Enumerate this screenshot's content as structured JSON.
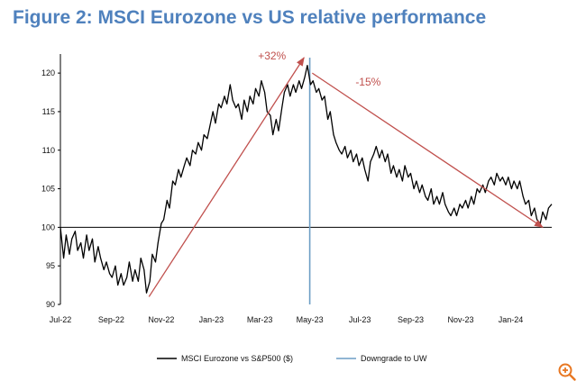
{
  "title": "Figure 2: MSCI Eurozone vs US relative performance",
  "zoom_icon": "zoom-in-icon",
  "chart_data": {
    "type": "line",
    "title": "Figure 2: MSCI Eurozone vs US relative performance",
    "ylim": [
      90,
      122
    ],
    "yticks": [
      90,
      95,
      100,
      105,
      110,
      115,
      120
    ],
    "x_range": [
      "2022-07-01",
      "2024-02-20"
    ],
    "xticks": [
      {
        "label": "Jul-22",
        "date": "2022-07-01"
      },
      {
        "label": "Sep-22",
        "date": "2022-09-01"
      },
      {
        "label": "Nov-22",
        "date": "2022-11-01"
      },
      {
        "label": "Jan-23",
        "date": "2023-01-01"
      },
      {
        "label": "Mar-23",
        "date": "2023-03-01"
      },
      {
        "label": "May-23",
        "date": "2023-05-01"
      },
      {
        "label": "Jul-23",
        "date": "2023-07-01"
      },
      {
        "label": "Sep-23",
        "date": "2023-09-01"
      },
      {
        "label": "Nov-23",
        "date": "2023-11-01"
      },
      {
        "label": "Jan-24",
        "date": "2024-01-01"
      }
    ],
    "grid": false,
    "baseline": 100,
    "legend_position": "bottom",
    "series": [
      {
        "name": "MSCI Eurozone vs S&P500 ($)",
        "color": "#000000",
        "points": [
          [
            "2022-07-01",
            100.0
          ],
          [
            "2022-07-05",
            96.0
          ],
          [
            "2022-07-08",
            99.0
          ],
          [
            "2022-07-12",
            96.5
          ],
          [
            "2022-07-15",
            98.5
          ],
          [
            "2022-07-19",
            99.5
          ],
          [
            "2022-07-22",
            97.0
          ],
          [
            "2022-07-26",
            98.0
          ],
          [
            "2022-07-29",
            96.0
          ],
          [
            "2022-08-02",
            99.0
          ],
          [
            "2022-08-05",
            97.0
          ],
          [
            "2022-08-09",
            98.5
          ],
          [
            "2022-08-12",
            95.5
          ],
          [
            "2022-08-16",
            97.5
          ],
          [
            "2022-08-19",
            96.0
          ],
          [
            "2022-08-23",
            94.5
          ],
          [
            "2022-08-26",
            95.5
          ],
          [
            "2022-08-30",
            94.0
          ],
          [
            "2022-09-02",
            93.5
          ],
          [
            "2022-09-06",
            95.0
          ],
          [
            "2022-09-09",
            92.5
          ],
          [
            "2022-09-13",
            94.0
          ],
          [
            "2022-09-16",
            92.5
          ],
          [
            "2022-09-20",
            93.5
          ],
          [
            "2022-09-23",
            95.5
          ],
          [
            "2022-09-27",
            93.0
          ],
          [
            "2022-09-30",
            94.5
          ],
          [
            "2022-10-04",
            93.0
          ],
          [
            "2022-10-07",
            96.0
          ],
          [
            "2022-10-11",
            94.5
          ],
          [
            "2022-10-14",
            91.5
          ],
          [
            "2022-10-18",
            93.0
          ],
          [
            "2022-10-21",
            96.5
          ],
          [
            "2022-10-25",
            95.5
          ],
          [
            "2022-10-28",
            98.0
          ],
          [
            "2022-11-01",
            100.5
          ],
          [
            "2022-11-04",
            101.0
          ],
          [
            "2022-11-08",
            103.5
          ],
          [
            "2022-11-11",
            102.5
          ],
          [
            "2022-11-15",
            106.0
          ],
          [
            "2022-11-18",
            105.5
          ],
          [
            "2022-11-22",
            107.5
          ],
          [
            "2022-11-25",
            106.5
          ],
          [
            "2022-11-29",
            108.0
          ],
          [
            "2022-12-02",
            109.0
          ],
          [
            "2022-12-06",
            108.0
          ],
          [
            "2022-12-09",
            110.0
          ],
          [
            "2022-12-13",
            109.5
          ],
          [
            "2022-12-16",
            111.0
          ],
          [
            "2022-12-20",
            110.0
          ],
          [
            "2022-12-23",
            112.0
          ],
          [
            "2022-12-27",
            111.5
          ],
          [
            "2022-12-30",
            113.0
          ],
          [
            "2023-01-03",
            115.0
          ],
          [
            "2023-01-06",
            113.5
          ],
          [
            "2023-01-10",
            116.0
          ],
          [
            "2023-01-13",
            115.5
          ],
          [
            "2023-01-17",
            117.0
          ],
          [
            "2023-01-20",
            116.0
          ],
          [
            "2023-01-24",
            118.5
          ],
          [
            "2023-01-27",
            116.5
          ],
          [
            "2023-01-31",
            115.5
          ],
          [
            "2023-02-03",
            116.0
          ],
          [
            "2023-02-07",
            114.0
          ],
          [
            "2023-02-10",
            116.5
          ],
          [
            "2023-02-14",
            115.0
          ],
          [
            "2023-02-17",
            117.0
          ],
          [
            "2023-02-21",
            116.0
          ],
          [
            "2023-02-24",
            118.0
          ],
          [
            "2023-02-28",
            117.0
          ],
          [
            "2023-03-03",
            119.0
          ],
          [
            "2023-03-07",
            117.5
          ],
          [
            "2023-03-10",
            115.0
          ],
          [
            "2023-03-14",
            114.5
          ],
          [
            "2023-03-17",
            112.0
          ],
          [
            "2023-03-21",
            114.0
          ],
          [
            "2023-03-24",
            112.5
          ],
          [
            "2023-03-28",
            115.5
          ],
          [
            "2023-03-31",
            117.5
          ],
          [
            "2023-04-04",
            118.5
          ],
          [
            "2023-04-07",
            117.0
          ],
          [
            "2023-04-11",
            118.5
          ],
          [
            "2023-04-14",
            117.5
          ],
          [
            "2023-04-18",
            119.0
          ],
          [
            "2023-04-21",
            118.0
          ],
          [
            "2023-04-25",
            119.5
          ],
          [
            "2023-04-28",
            121.0
          ],
          [
            "2023-05-02",
            118.5
          ],
          [
            "2023-05-05",
            119.0
          ],
          [
            "2023-05-09",
            117.5
          ],
          [
            "2023-05-12",
            118.0
          ],
          [
            "2023-05-16",
            116.5
          ],
          [
            "2023-05-19",
            117.0
          ],
          [
            "2023-05-23",
            114.0
          ],
          [
            "2023-05-26",
            115.0
          ],
          [
            "2023-05-30",
            112.0
          ],
          [
            "2023-06-02",
            111.0
          ],
          [
            "2023-06-06",
            110.0
          ],
          [
            "2023-06-09",
            109.5
          ],
          [
            "2023-06-13",
            110.5
          ],
          [
            "2023-06-16",
            109.0
          ],
          [
            "2023-06-20",
            110.0
          ],
          [
            "2023-06-23",
            108.5
          ],
          [
            "2023-06-27",
            109.5
          ],
          [
            "2023-06-30",
            108.0
          ],
          [
            "2023-07-04",
            109.0
          ],
          [
            "2023-07-07",
            107.5
          ],
          [
            "2023-07-11",
            106.0
          ],
          [
            "2023-07-14",
            108.5
          ],
          [
            "2023-07-18",
            109.5
          ],
          [
            "2023-07-21",
            110.5
          ],
          [
            "2023-07-25",
            109.0
          ],
          [
            "2023-07-28",
            110.0
          ],
          [
            "2023-08-01",
            108.5
          ],
          [
            "2023-08-04",
            109.5
          ],
          [
            "2023-08-08",
            107.0
          ],
          [
            "2023-08-11",
            108.0
          ],
          [
            "2023-08-15",
            106.5
          ],
          [
            "2023-08-18",
            107.5
          ],
          [
            "2023-08-22",
            106.0
          ],
          [
            "2023-08-25",
            108.0
          ],
          [
            "2023-08-29",
            106.5
          ],
          [
            "2023-09-01",
            107.0
          ],
          [
            "2023-09-05",
            105.0
          ],
          [
            "2023-09-08",
            106.0
          ],
          [
            "2023-09-12",
            104.5
          ],
          [
            "2023-09-15",
            105.5
          ],
          [
            "2023-09-19",
            104.0
          ],
          [
            "2023-09-22",
            103.5
          ],
          [
            "2023-09-26",
            105.0
          ],
          [
            "2023-09-29",
            103.0
          ],
          [
            "2023-10-03",
            104.0
          ],
          [
            "2023-10-06",
            103.0
          ],
          [
            "2023-10-10",
            104.5
          ],
          [
            "2023-10-13",
            103.0
          ],
          [
            "2023-10-17",
            102.0
          ],
          [
            "2023-10-20",
            101.5
          ],
          [
            "2023-10-24",
            102.5
          ],
          [
            "2023-10-27",
            101.5
          ],
          [
            "2023-10-31",
            103.0
          ],
          [
            "2023-11-03",
            102.5
          ],
          [
            "2023-11-07",
            103.5
          ],
          [
            "2023-11-10",
            102.5
          ],
          [
            "2023-11-14",
            104.0
          ],
          [
            "2023-11-17",
            103.0
          ],
          [
            "2023-11-21",
            105.0
          ],
          [
            "2023-11-24",
            104.5
          ],
          [
            "2023-11-28",
            105.5
          ],
          [
            "2023-12-01",
            104.5
          ],
          [
            "2023-12-05",
            106.0
          ],
          [
            "2023-12-08",
            106.5
          ],
          [
            "2023-12-12",
            105.5
          ],
          [
            "2023-12-15",
            107.0
          ],
          [
            "2023-12-19",
            106.0
          ],
          [
            "2023-12-22",
            106.5
          ],
          [
            "2023-12-26",
            105.5
          ],
          [
            "2023-12-29",
            106.5
          ],
          [
            "2024-01-02",
            105.0
          ],
          [
            "2024-01-05",
            106.0
          ],
          [
            "2024-01-09",
            105.0
          ],
          [
            "2024-01-12",
            106.0
          ],
          [
            "2024-01-16",
            104.0
          ],
          [
            "2024-01-19",
            103.0
          ],
          [
            "2024-01-23",
            103.5
          ],
          [
            "2024-01-26",
            101.5
          ],
          [
            "2024-01-30",
            102.5
          ],
          [
            "2024-02-02",
            101.0
          ],
          [
            "2024-02-06",
            100.5
          ],
          [
            "2024-02-09",
            102.0
          ],
          [
            "2024-02-13",
            101.0
          ],
          [
            "2024-02-16",
            102.5
          ],
          [
            "2024-02-20",
            103.0
          ]
        ]
      }
    ],
    "event_line": {
      "name": "Downgrade to UW",
      "date": "2023-05-01",
      "color": "#6d9ec5"
    },
    "annotations": [
      {
        "text": "+32%",
        "color": "#c0504d",
        "from": [
          "2022-10-17",
          91.0
        ],
        "to": [
          "2023-04-24",
          122.0
        ]
      },
      {
        "text": "-15%",
        "color": "#c0504d",
        "from": [
          "2023-05-04",
          120.0
        ],
        "to": [
          "2024-02-09",
          100.0
        ]
      }
    ]
  }
}
